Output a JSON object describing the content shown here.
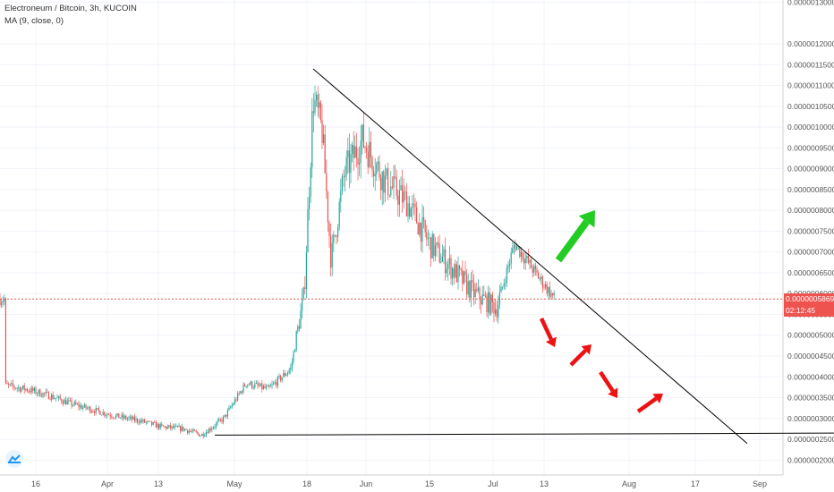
{
  "legend": {
    "title": "Electroneum / Bitcoin, 3h, KUCOIN",
    "indicator": "MA (9, close, 0)"
  },
  "price_axis": {
    "labels": [
      "0.0000013000",
      "0.0000012000",
      "0.0000011500",
      "0.0000011000",
      "0.0000010500",
      "0.0000010000",
      "0.0000009500",
      "0.0000009000",
      "0.0000008500",
      "0.0000008000",
      "0.0000007500",
      "0.0000007000",
      "0.0000006500",
      "0.0000006000",
      "0.0000005500",
      "0.0000005000",
      "0.0000004500",
      "0.0000004000",
      "0.0000003500",
      "0.0000003000",
      "0.0000002500",
      "0.0000002000"
    ]
  },
  "time_axis": {
    "labels": [
      "16",
      "Apr",
      "13",
      "May",
      "18",
      "Jun",
      "15",
      "Jul",
      "13",
      "Aug",
      "17",
      "Sep"
    ]
  },
  "current_price": {
    "label": "0.0000005869",
    "countdown": "02:12:45"
  },
  "colors": {
    "up": "#26a69a",
    "down": "#ef5350",
    "current_price_line": "#ef5350",
    "countdown_bg": "#ef5350",
    "trendline": "#000000",
    "green_arrow": "#22cc22",
    "red_arrow": "#ee1111"
  },
  "icons": {
    "logo": "tradingview-logo-icon"
  },
  "chart_data": {
    "type": "line",
    "title": "Electroneum / Bitcoin, 3h, KUCOIN",
    "xlabel": "",
    "ylabel": "",
    "series": [
      {
        "name": "ETN/BTC",
        "points": [
          [
            "Mar 9",
            3.8e-07
          ],
          [
            "Mar 14",
            3.7e-07
          ],
          [
            "Mar 19",
            3.55e-07
          ],
          [
            "Mar 24",
            3.35e-07
          ],
          [
            "Mar 29",
            3.2e-07
          ],
          [
            "Apr 3",
            3.05e-07
          ],
          [
            "Apr 8",
            2.95e-07
          ],
          [
            "Apr 13",
            2.8e-07
          ],
          [
            "Apr 18",
            2.75e-07
          ],
          [
            "Apr 22",
            2.6e-07
          ],
          [
            "Apr 27",
            3e-07
          ],
          [
            "May 2",
            3.85e-07
          ],
          [
            "May 7",
            3.7e-07
          ],
          [
            "May 12",
            4.2e-07
          ],
          [
            "May 15",
            6e-07
          ],
          [
            "May 17",
            1.07e-06
          ],
          [
            "May 19",
            9.9e-07
          ],
          [
            "May 21",
            6.8e-07
          ],
          [
            "May 24",
            8.9e-07
          ],
          [
            "May 28",
            9.7e-07
          ],
          [
            "Jun 2",
            8.7e-07
          ],
          [
            "Jun 7",
            8.2e-07
          ],
          [
            "Jun 12",
            7.2e-07
          ],
          [
            "Jun 17",
            6.6e-07
          ],
          [
            "Jun 22",
            6e-07
          ],
          [
            "Jun 27",
            5.65e-07
          ],
          [
            "Jul 1",
            7.2e-07
          ],
          [
            "Jul 6",
            6.45e-07
          ],
          [
            "Jul 10",
            5.869e-07
          ]
        ]
      }
    ],
    "trendlines": [
      {
        "from": [
          "May 17",
          1.14e-06
        ],
        "to": [
          "Aug 22",
          2.4e-07
        ]
      },
      {
        "from": [
          "Apr 25",
          2.6e-07
        ],
        "to": [
          "Sep 15",
          2.65e-07
        ]
      }
    ],
    "annotations": [
      "green-arrow-up",
      "red-arrow-down",
      "red-arrow-up",
      "red-arrow-down",
      "red-arrow-up"
    ],
    "ylim": [
      1.8e-07,
      1.3e-06
    ],
    "xlim": [
      "Mar 6",
      "Sep 15"
    ],
    "grid": true
  }
}
